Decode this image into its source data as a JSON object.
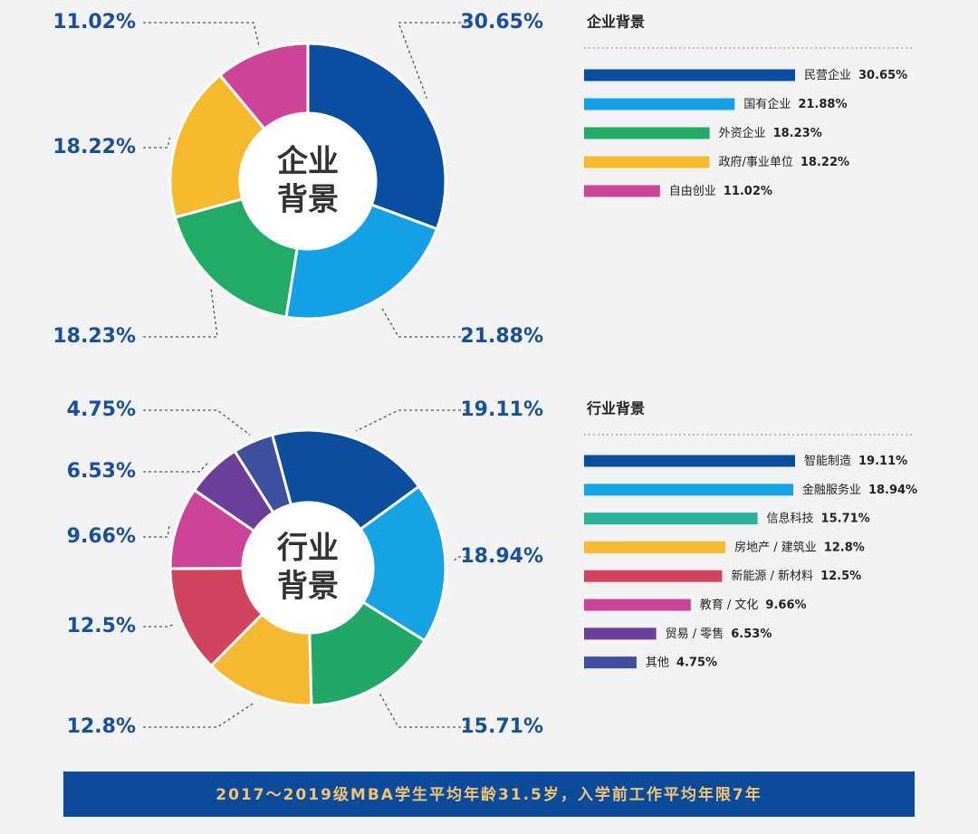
{
  "chart_data": [
    {
      "type": "pie",
      "center_label": [
        "企业",
        "背景"
      ],
      "values": [
        30.65,
        21.88,
        18.23,
        18.22,
        11.02
      ],
      "value_labels": [
        "30.65%",
        "21.88%",
        "18.23%",
        "18.22%",
        "11.02%"
      ],
      "colors": [
        "#0a4ea3",
        "#14a0e6",
        "#22ab66",
        "#f6b92b",
        "#cc4497"
      ]
    },
    {
      "type": "bar",
      "title": "企业背景",
      "categories": [
        "民营企业",
        "国有企业",
        "外资企业",
        "政府/事业单位",
        "自由创业"
      ],
      "values": [
        30.65,
        21.88,
        18.23,
        18.22,
        11.02
      ],
      "value_labels": [
        "30.65%",
        "21.88%",
        "18.23%",
        "18.22%",
        "11.02%"
      ],
      "colors": [
        "#0a4ea3",
        "#14a0e6",
        "#22ab66",
        "#f6b92b",
        "#cc4497"
      ]
    },
    {
      "type": "pie",
      "center_label": [
        "行业",
        "背景"
      ],
      "values": [
        19.11,
        18.94,
        15.71,
        12.8,
        12.5,
        9.66,
        6.53,
        4.75
      ],
      "value_labels": [
        "19.11%",
        "18.94%",
        "15.71%",
        "12.8%",
        "12.5%",
        "9.66%",
        "6.53%",
        "4.75%"
      ],
      "colors": [
        "#0d4d9e",
        "#15a3e6",
        "#21a866",
        "#f5b82e",
        "#d2435f",
        "#cc4497",
        "#6b3f99",
        "#3f4fa0"
      ]
    },
    {
      "type": "bar",
      "title": "行业背景",
      "categories": [
        "智能制造",
        "金融服务业",
        "信息科技",
        "房地产 / 建筑业",
        "新能源 / 新材料",
        "教育 / 文化",
        "贸易 / 零售",
        "其他"
      ],
      "values": [
        19.11,
        18.94,
        15.71,
        12.8,
        12.5,
        9.66,
        6.53,
        4.75
      ],
      "value_labels": [
        "19.11%",
        "18.94%",
        "15.71%",
        "12.8%",
        "12.5%",
        "9.66%",
        "6.53%",
        "4.75%"
      ],
      "colors": [
        "#0d4d9e",
        "#15a3e6",
        "#2ab39b",
        "#f5b82e",
        "#d2435f",
        "#cc4497",
        "#6b3f99",
        "#3f4fa0"
      ]
    }
  ],
  "footer": "2017～2019级MBA学生平均年龄31.5岁，入学前工作平均年限7年"
}
